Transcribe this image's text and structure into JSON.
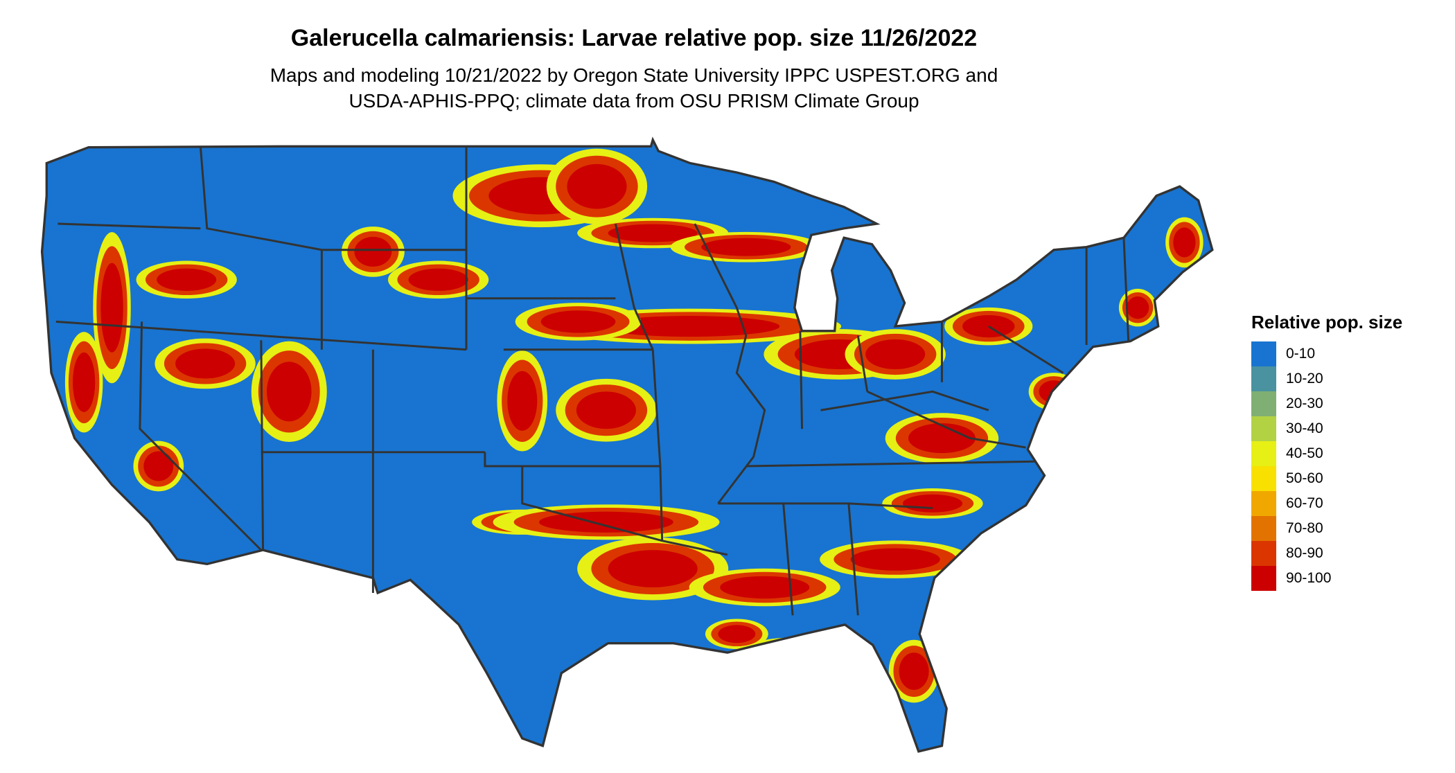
{
  "title": "Galerucella calmariensis: Larvae relative pop. size 11/26/2022",
  "subtitle_lines": [
    "Maps and modeling 10/21/2022 by Oregon State University IPPC USPEST.ORG and",
    "USDA-APHIS-PPQ; climate data from OSU PRISM Climate Group"
  ],
  "legend": {
    "title": "Relative pop. size",
    "items": [
      {
        "label": "0-10",
        "color": "#1874d0"
      },
      {
        "label": "10-20",
        "color": "#4a929f"
      },
      {
        "label": "20-30",
        "color": "#80af73"
      },
      {
        "label": "30-40",
        "color": "#b2d143"
      },
      {
        "label": "40-50",
        "color": "#e6f014"
      },
      {
        "label": "50-60",
        "color": "#f8e000"
      },
      {
        "label": "60-70",
        "color": "#f0a800"
      },
      {
        "label": "70-80",
        "color": "#e27300"
      },
      {
        "label": "80-90",
        "color": "#db3600"
      },
      {
        "label": "90-100",
        "color": "#cc0000"
      }
    ]
  },
  "map": {
    "region": "Contiguous United States",
    "boundary_color": "#333333",
    "dominant_class": "0-10",
    "high_classes_present": [
      "80-90",
      "90-100"
    ]
  }
}
